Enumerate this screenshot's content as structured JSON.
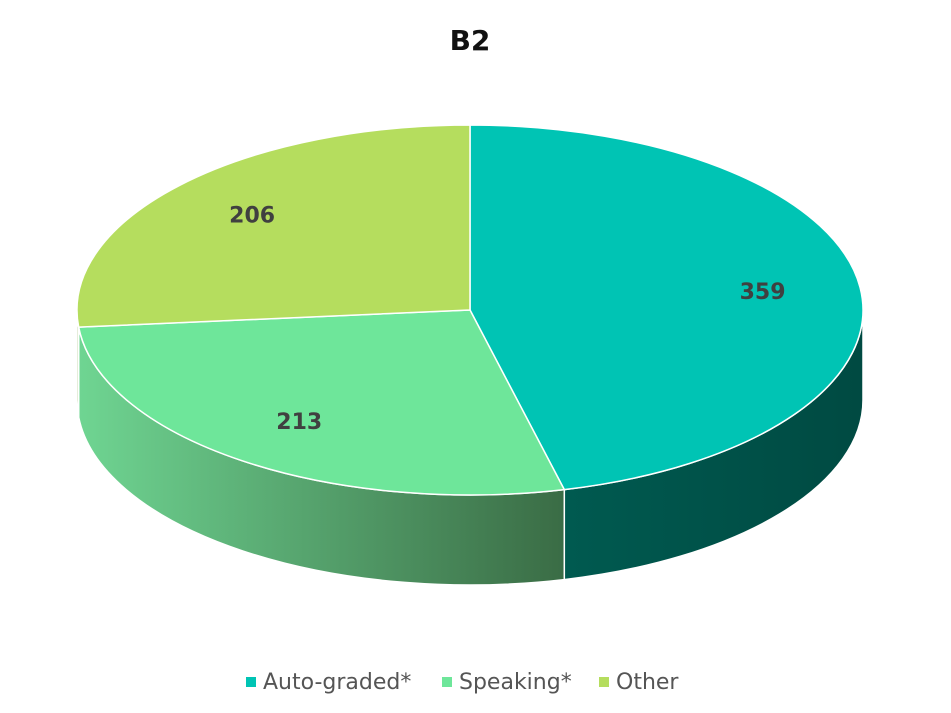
{
  "chart_data": {
    "type": "pie",
    "title": "B2",
    "categories": [
      "Auto-graded*",
      "Speaking*",
      "Other"
    ],
    "values": [
      359,
      213,
      206
    ],
    "colors": [
      "#00c4b4",
      "#6ee69a",
      "#b5dd5e"
    ],
    "legend": "bottom"
  }
}
